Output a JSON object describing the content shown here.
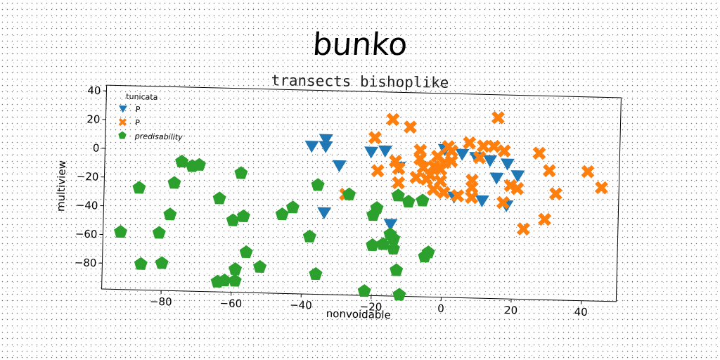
{
  "header": {
    "title": "bunko",
    "subtitle": "transects bishoplike"
  },
  "chart_data": {
    "type": "scatter",
    "title": "bunko",
    "subtitle": "transects bishoplike",
    "xlabel": "nonvoidable",
    "ylabel": "multiview",
    "xlim": [
      -97,
      50
    ],
    "ylim": [
      -98,
      44
    ],
    "xticks": [
      -80,
      -60,
      -40,
      -20,
      0,
      20,
      40
    ],
    "yticks": [
      40,
      20,
      0,
      -20,
      -40,
      -60,
      -80
    ],
    "grid": false,
    "legend": {
      "title": "tunicata",
      "placement": "top-left"
    },
    "series": [
      {
        "name": "P",
        "marker": "triangle-down",
        "color": "#1f77b4",
        "points": [
          [
            -38,
            5
          ],
          [
            -34,
            10
          ],
          [
            -34,
            5
          ],
          [
            -30,
            -8
          ],
          [
            -21,
            2
          ],
          [
            -17,
            3
          ],
          [
            -13,
            -8
          ],
          [
            -34,
            -41
          ],
          [
            -15,
            -48
          ],
          [
            0,
            5
          ],
          [
            5,
            2
          ],
          [
            9,
            0
          ],
          [
            13,
            -2
          ],
          [
            15,
            -14
          ],
          [
            18,
            -4
          ],
          [
            21,
            -12
          ],
          [
            3,
            -28
          ],
          [
            11,
            -30
          ],
          [
            18,
            -33
          ]
        ]
      },
      {
        "name": "P",
        "marker": "x",
        "color": "#ff7f0e",
        "points": [
          [
            -20,
            12
          ],
          [
            -15,
            25
          ],
          [
            -10,
            20
          ],
          [
            -19,
            -11
          ],
          [
            -14,
            -4
          ],
          [
            -13,
            -9
          ],
          [
            -13,
            -19
          ],
          [
            -8,
            -15
          ],
          [
            -7,
            4
          ],
          [
            -7,
            -2
          ],
          [
            -6,
            -8
          ],
          [
            -5,
            -16
          ],
          [
            -4,
            -13
          ],
          [
            -3,
            -23
          ],
          [
            -3,
            -7
          ],
          [
            -2,
            0
          ],
          [
            -1,
            -9
          ],
          [
            -1,
            -17
          ],
          [
            0,
            -4
          ],
          [
            0,
            -25
          ],
          [
            1,
            7
          ],
          [
            2,
            4
          ],
          [
            2,
            -3
          ],
          [
            4,
            -27
          ],
          [
            7,
            10
          ],
          [
            8,
            -16
          ],
          [
            8,
            -21
          ],
          [
            8,
            -28
          ],
          [
            10,
            0
          ],
          [
            11,
            8
          ],
          [
            14,
            8
          ],
          [
            15,
            28
          ],
          [
            17,
            5
          ],
          [
            17,
            -31
          ],
          [
            19,
            -19
          ],
          [
            21,
            -21
          ],
          [
            23,
            -49
          ],
          [
            27,
            4
          ],
          [
            29,
            -42
          ],
          [
            30,
            -8
          ],
          [
            32,
            -24
          ],
          [
            41,
            -8
          ],
          [
            45,
            -19
          ],
          [
            -28,
            -28
          ]
        ]
      },
      {
        "name": "predisability",
        "marker": "pentagon",
        "color": "#2ca02c",
        "points": [
          [
            -92,
            -58
          ],
          [
            -87,
            -27
          ],
          [
            -86,
            -80
          ],
          [
            -81,
            -58
          ],
          [
            -80,
            -79
          ],
          [
            -78,
            -45
          ],
          [
            -77,
            -23
          ],
          [
            -75,
            -8
          ],
          [
            -72,
            -11
          ],
          [
            -70,
            -10
          ],
          [
            -64,
            -33
          ],
          [
            -64,
            -91
          ],
          [
            -62,
            -90
          ],
          [
            -60,
            -48
          ],
          [
            -58,
            -15
          ],
          [
            -59,
            -82
          ],
          [
            -59,
            -90
          ],
          [
            -57,
            -45
          ],
          [
            -56,
            -70
          ],
          [
            -52,
            -80
          ],
          [
            -46,
            -43
          ],
          [
            -43,
            -38
          ],
          [
            -38,
            -58
          ],
          [
            -36,
            -22
          ],
          [
            -36,
            -84
          ],
          [
            -27,
            -28
          ],
          [
            -22,
            -95
          ],
          [
            -20,
            -63
          ],
          [
            -20,
            -42
          ],
          [
            -19,
            -37
          ],
          [
            -17,
            -62
          ],
          [
            -15,
            -55
          ],
          [
            -14,
            -58
          ],
          [
            -14,
            -65
          ],
          [
            -13,
            -28
          ],
          [
            -13,
            -80
          ],
          [
            -12,
            -97
          ],
          [
            -10,
            -32
          ],
          [
            -6,
            -31
          ],
          [
            -5,
            -70
          ],
          [
            -4,
            -67
          ]
        ]
      }
    ]
  }
}
